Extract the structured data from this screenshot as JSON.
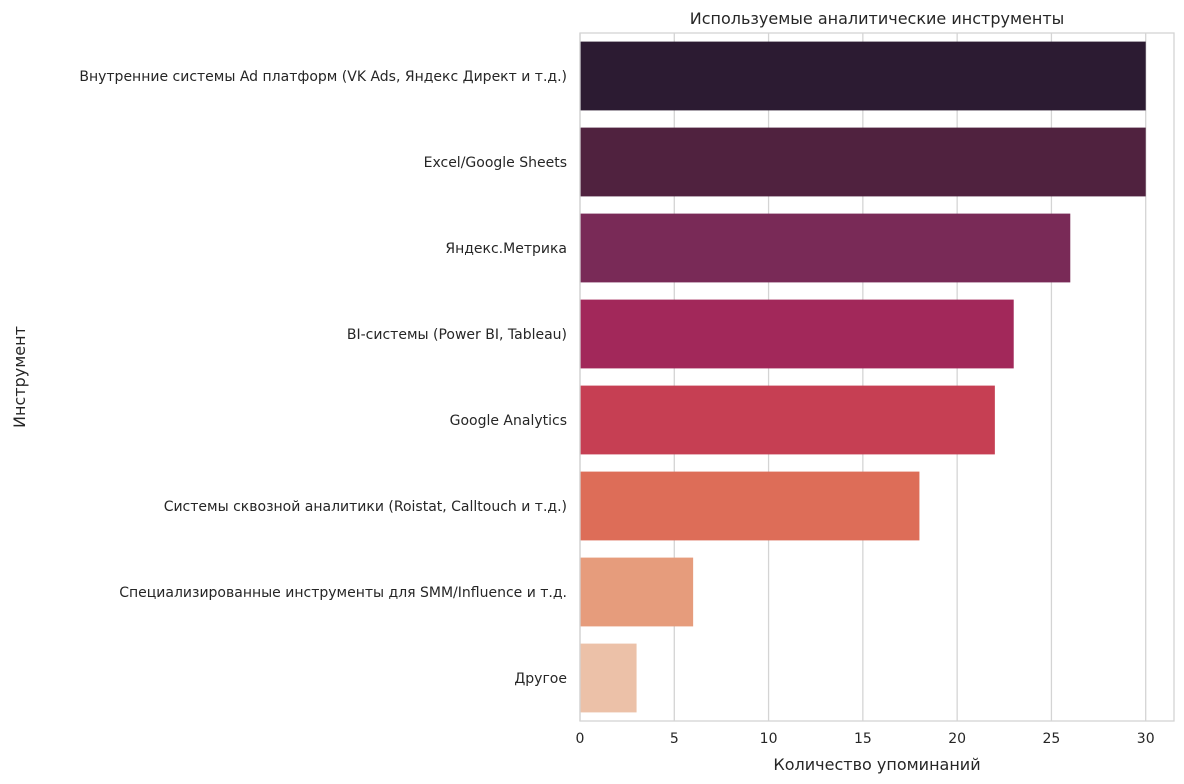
{
  "chart_data": {
    "type": "bar",
    "orientation": "horizontal",
    "title": "Используемые аналитические инструменты",
    "xlabel": "Количество упоминаний",
    "ylabel": "Инструмент",
    "xlim": [
      0,
      31.5
    ],
    "xticks": [
      0,
      5,
      10,
      15,
      20,
      25,
      30
    ],
    "grid": true,
    "categories": [
      "Внутренние системы Ad платформ (VK Ads, Яндекс Директ и т.д.)",
      "Excel/Google Sheets",
      "Яндекс.Метрика",
      "BI-системы (Power BI, Tableau)",
      "Google Analytics",
      "Системы сквозной аналитики (Roistat, Calltouch и т.д.)",
      "Специализированные инструменты для SMM/Influence и т.д.",
      "Другое"
    ],
    "values": [
      30,
      30,
      26,
      23,
      22,
      18,
      6,
      3
    ],
    "colors": [
      "#2c1b32",
      "#50223f",
      "#792a57",
      "#a2285a",
      "#c63f53",
      "#dd6d58",
      "#e69c7c",
      "#ecc1a8"
    ]
  }
}
